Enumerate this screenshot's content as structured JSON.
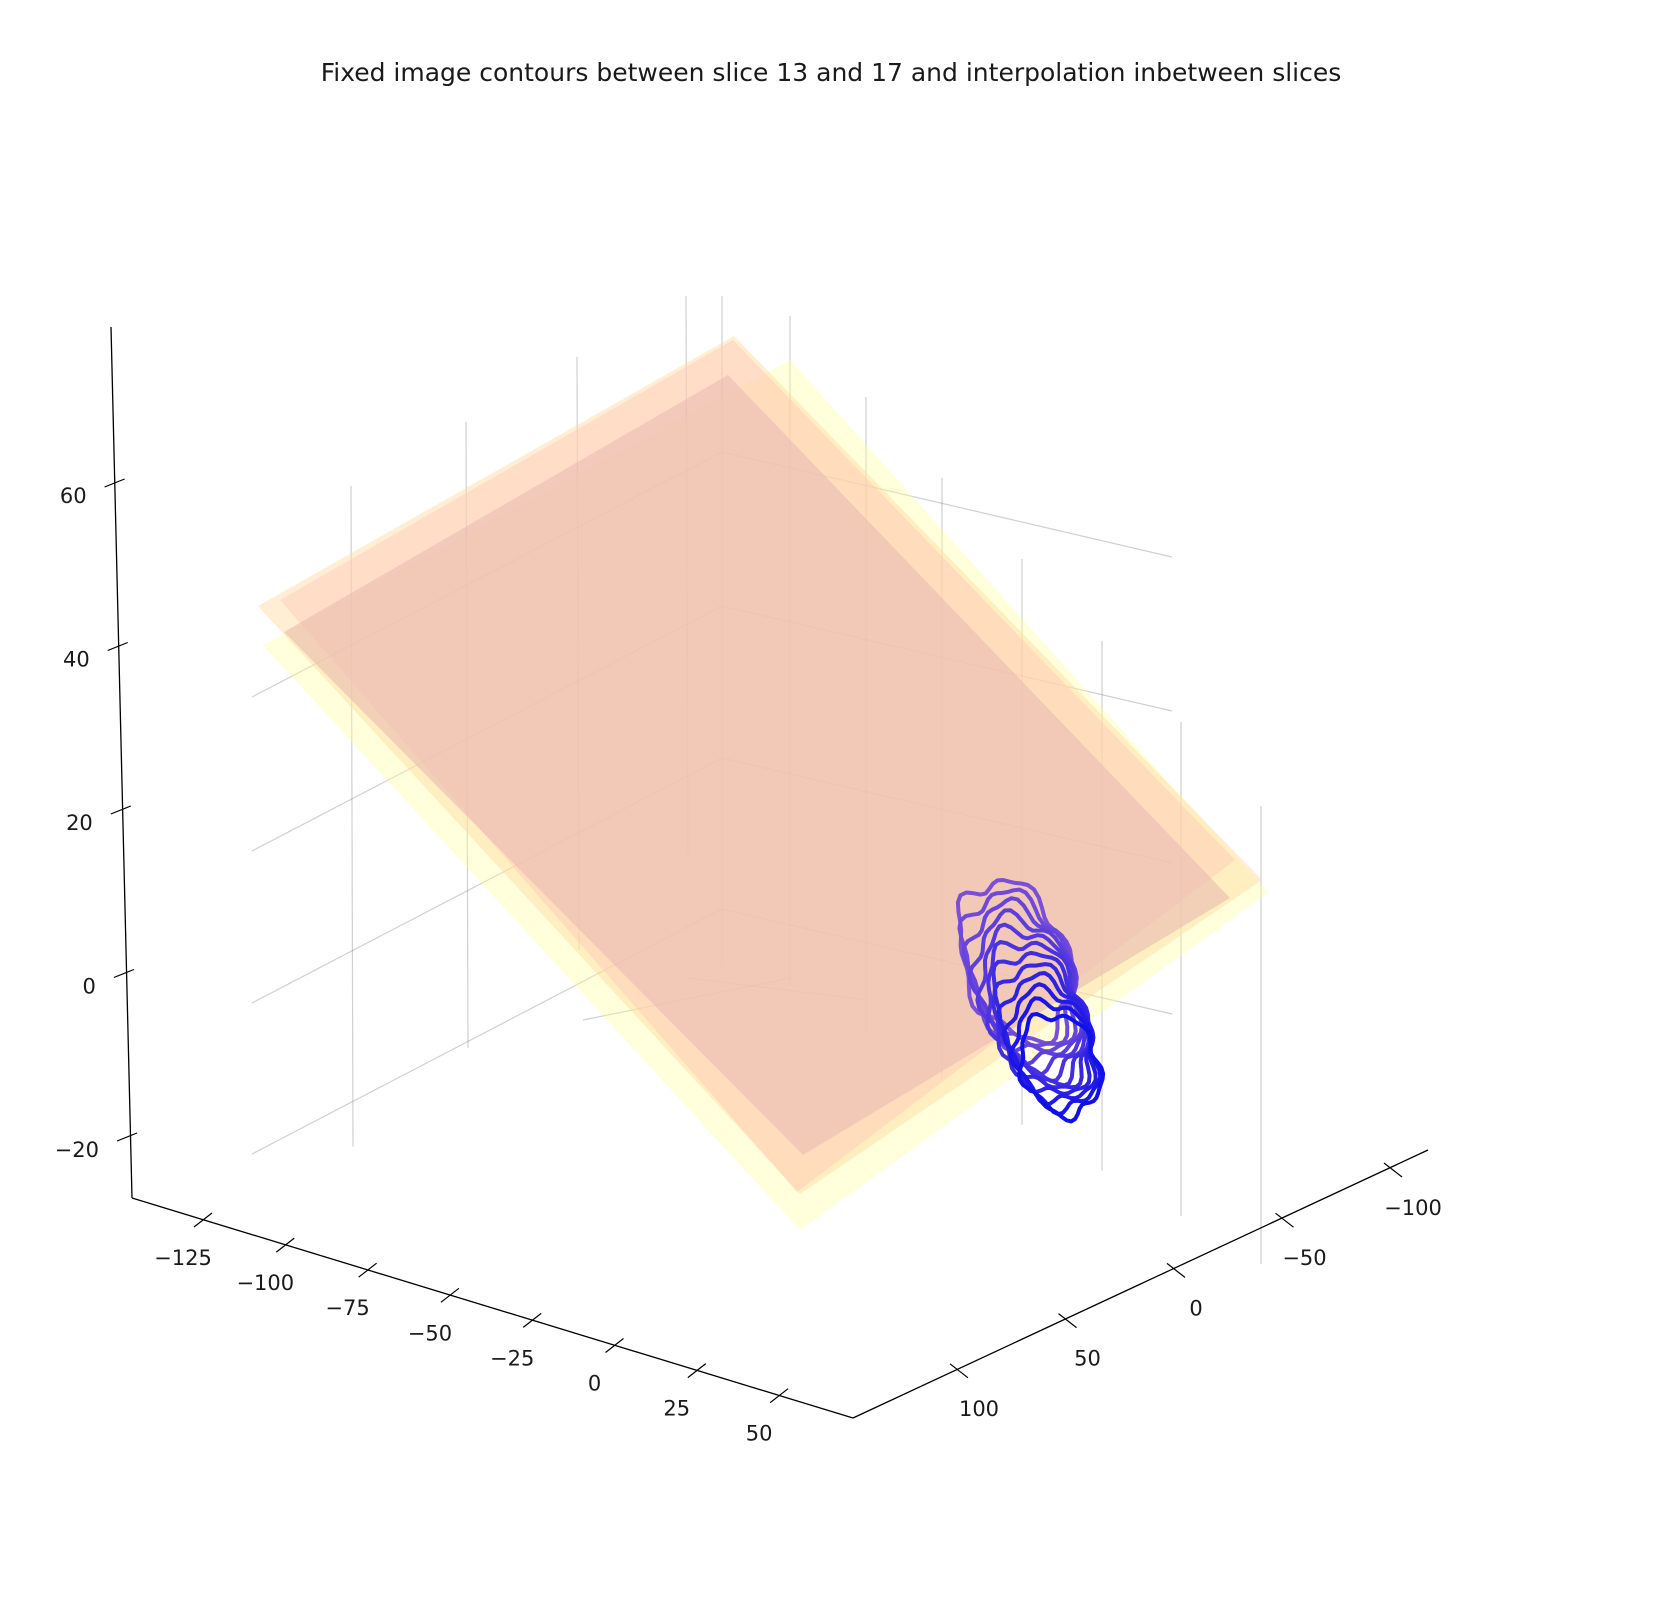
{
  "chart_data": {
    "type": "3d-contour",
    "title": "Fixed image contours between slice 13 and 17 and interpolation inbetween slices",
    "axes": {
      "x": {
        "ticks": [
          -125,
          -100,
          -75,
          -50,
          -25,
          0,
          25,
          50
        ],
        "tick_labels": [
          "−125",
          "−100",
          "−75",
          "−50",
          "−25",
          "0",
          "25",
          "50"
        ]
      },
      "y": {
        "ticks": [
          -100,
          -50,
          0,
          50,
          100
        ],
        "tick_labels": [
          "−100",
          "−50",
          "0",
          "50",
          "100"
        ]
      },
      "z": {
        "ticks": [
          -20,
          0,
          20,
          40,
          60
        ],
        "tick_labels": [
          "−20",
          "0",
          "20",
          "40",
          "60"
        ]
      }
    },
    "planes": [
      {
        "color": "#ffff99",
        "opacity": 0.35
      },
      {
        "color": "#ffd9a0",
        "opacity": 0.45
      },
      {
        "color": "#ffc8b8",
        "opacity": 0.45
      },
      {
        "color": "#e8b8b0",
        "opacity": 0.55
      }
    ],
    "contours": {
      "count": 12,
      "color_start": "#7a4fd8",
      "color_end": "#1010e8"
    },
    "grid": true,
    "legend": false
  }
}
